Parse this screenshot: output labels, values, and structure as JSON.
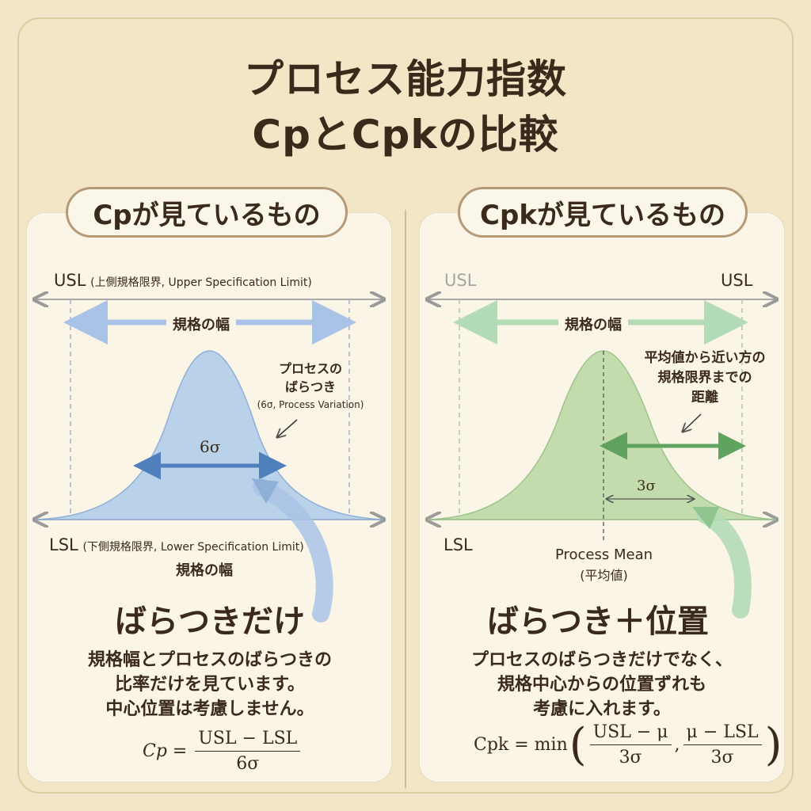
{
  "title_line1": "プロセス能力指数",
  "title_line2": "CpとCpkの比較",
  "left": {
    "heading": "Cpが見ているもの",
    "usl_prefix": "USL",
    "usl_note": "(上側規格限界, Upper Specification Limit)",
    "spec_width_top": "規格の幅",
    "variation_line1": "プロセスの",
    "variation_line2": "ばらつき",
    "variation_line3": "(6σ, Process Variation)",
    "sigma_label": "6σ",
    "lsl_prefix": "LSL",
    "lsl_note": "(下側規格限界, Lower Specification Limit)",
    "spec_width_bottom": "規格の幅",
    "summary": "ばらつきだけ",
    "desc_line1": "規格幅とプロセスのばらつきの",
    "desc_line2": "比率だけを見ています。",
    "desc_line3": "中心位置は考慮しません。",
    "formula_lhs": "Cp =",
    "formula_num": "USL − LSL",
    "formula_den": "6σ",
    "color_fill": "#b9d2ea",
    "color_arrow": "#5f8cc6"
  },
  "right": {
    "heading": "Cpkが見ているもの",
    "usl_faded": "USL",
    "usl": "USL",
    "spec_width": "規格の幅",
    "distance_line1": "平均値から近い方の",
    "distance_line2": "規格限界までの",
    "distance_line3": "距離",
    "sigma_label": "3σ",
    "lsl": "LSL",
    "mean_line1": "Process Mean",
    "mean_line2": "(平均値)",
    "summary": "ばらつき＋位置",
    "desc_line1": "プロセスのばらつきだけでなく、",
    "desc_line2": "規格中心からの位置ずれも",
    "desc_line3": "考慮に入れます。",
    "formula_lhs": "Cpk = min",
    "formula_num1": "USL − μ",
    "formula_den1": "3σ",
    "formula_num2": "μ − LSL",
    "formula_den2": "3σ",
    "color_fill": "#c3dcae",
    "color_arrow": "#6aa66a"
  }
}
